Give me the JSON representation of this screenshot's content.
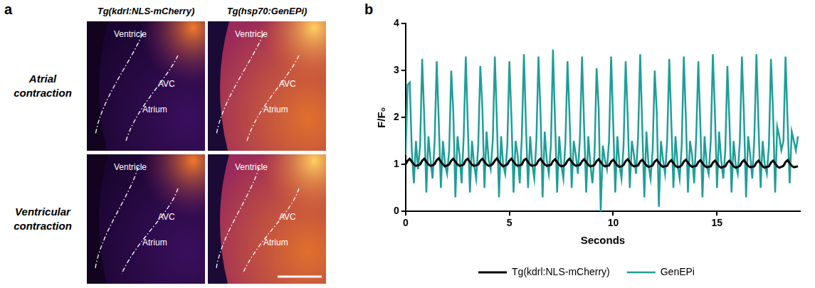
{
  "panel_a": {
    "letter": "a",
    "columns": [
      "Tg(kdrl:NLS-mCherry)",
      "Tg(hsp70:GenEPi)"
    ],
    "rows": [
      "Atrial contraction",
      "Ventricular contraction"
    ],
    "region_labels": [
      "Ventricle",
      "AVC",
      "Atrium"
    ]
  },
  "panel_b_letter": "b",
  "chart_data": {
    "type": "line",
    "x_label": "Seconds",
    "y_label": "F/F₀",
    "xlim": [
      0,
      19
    ],
    "xticks": [
      0,
      5,
      10,
      15
    ],
    "ylim": [
      0,
      4
    ],
    "yticks": [
      0,
      1,
      2,
      3,
      4
    ],
    "grid": false,
    "legend": "bottom",
    "x": [
      0,
      0.1,
      0.2,
      0.3,
      0.4,
      0.5,
      0.6,
      0.7,
      0.8,
      0.9,
      1,
      1.1,
      1.2,
      1.3,
      1.4,
      1.5,
      1.6,
      1.7,
      1.8,
      1.9,
      2,
      2.1,
      2.2,
      2.3,
      2.4,
      2.5,
      2.6,
      2.7,
      2.8,
      2.9,
      3,
      3.1,
      3.2,
      3.3,
      3.4,
      3.5,
      3.6,
      3.7,
      3.8,
      3.9,
      4,
      4.1,
      4.2,
      4.3,
      4.4,
      4.5,
      4.6,
      4.7,
      4.8,
      4.9,
      5,
      5.1,
      5.2,
      5.3,
      5.4,
      5.5,
      5.6,
      5.7,
      5.8,
      5.9,
      6,
      6.1,
      6.2,
      6.3,
      6.4,
      6.5,
      6.6,
      6.7,
      6.8,
      6.9,
      7,
      7.1,
      7.2,
      7.3,
      7.4,
      7.5,
      7.6,
      7.7,
      7.8,
      7.9,
      8,
      8.1,
      8.2,
      8.3,
      8.4,
      8.5,
      8.6,
      8.7,
      8.8,
      8.9,
      9,
      9.1,
      9.2,
      9.3,
      9.4,
      9.5,
      9.6,
      9.7,
      9.8,
      9.9,
      10,
      10.1,
      10.2,
      10.3,
      10.4,
      10.5,
      10.6,
      10.7,
      10.8,
      10.9,
      11,
      11.1,
      11.2,
      11.3,
      11.4,
      11.5,
      11.6,
      11.7,
      11.8,
      11.9,
      12,
      12.1,
      12.2,
      12.3,
      12.4,
      12.5,
      12.6,
      12.7,
      12.8,
      12.9,
      13,
      13.1,
      13.2,
      13.3,
      13.4,
      13.5,
      13.6,
      13.7,
      13.8,
      13.9,
      14,
      14.1,
      14.2,
      14.3,
      14.4,
      14.5,
      14.6,
      14.7,
      14.8,
      14.9,
      15,
      15.1,
      15.2,
      15.3,
      15.4,
      15.5,
      15.6,
      15.7,
      15.8,
      15.9,
      16,
      16.1,
      16.2,
      16.3,
      16.4,
      16.5,
      16.6,
      16.7,
      16.8,
      16.9,
      17,
      17.1,
      17.2,
      17.3,
      17.4,
      17.5,
      17.6,
      17.7,
      17.8,
      17.9,
      18,
      18.1,
      18.2,
      18.3,
      18.4,
      18.5,
      18.6,
      18.7,
      18.8,
      18.9
    ],
    "series": [
      {
        "name": "Tg(kdrl:NLS-mCherry)",
        "color": "#000000",
        "values": [
          1.0,
          1.08,
          1.12,
          1.06,
          1.0,
          0.97,
          0.98,
          1.0,
          1.08,
          1.12,
          1.06,
          1.0,
          0.97,
          0.98,
          1.01,
          1.09,
          1.13,
          1.06,
          1.0,
          0.96,
          0.98,
          1.0,
          1.08,
          1.12,
          1.06,
          1.0,
          0.97,
          0.98,
          1.0,
          1.09,
          1.12,
          1.05,
          0.99,
          0.97,
          0.98,
          1.0,
          1.08,
          1.12,
          1.06,
          1.0,
          0.97,
          0.98,
          1.01,
          1.08,
          1.13,
          1.06,
          1.0,
          0.96,
          0.98,
          1.0,
          1.08,
          1.12,
          1.06,
          1.0,
          0.97,
          0.98,
          1.0,
          1.09,
          1.12,
          1.05,
          0.99,
          0.97,
          0.98,
          1.0,
          1.08,
          1.12,
          1.06,
          1.0,
          0.97,
          0.98,
          0.99,
          1.07,
          1.11,
          1.05,
          0.99,
          0.96,
          0.97,
          1.0,
          1.08,
          1.12,
          1.06,
          1.0,
          0.97,
          0.98,
          0.99,
          1.07,
          1.11,
          1.05,
          0.99,
          0.96,
          0.97,
          0.99,
          1.07,
          1.11,
          1.05,
          0.99,
          0.96,
          0.97,
          0.98,
          1.06,
          1.1,
          1.04,
          0.98,
          0.95,
          0.96,
          0.99,
          1.07,
          1.11,
          1.05,
          0.99,
          0.96,
          0.97,
          0.98,
          1.06,
          1.1,
          1.04,
          0.98,
          0.95,
          0.96,
          0.98,
          1.06,
          1.1,
          1.04,
          0.98,
          0.95,
          0.96,
          0.97,
          1.05,
          1.09,
          1.03,
          0.97,
          0.94,
          0.95,
          0.98,
          1.06,
          1.1,
          1.04,
          0.98,
          0.95,
          0.96,
          0.97,
          1.05,
          1.09,
          1.03,
          0.97,
          0.94,
          0.95,
          0.96,
          1.04,
          1.08,
          1.02,
          0.96,
          0.93,
          0.95,
          0.96,
          1.04,
          1.08,
          1.02,
          0.96,
          0.93,
          0.95,
          0.97,
          1.05,
          1.09,
          1.03,
          0.97,
          0.94,
          0.95,
          0.96,
          1.04,
          1.08,
          1.02,
          0.96,
          0.93,
          0.95,
          0.96,
          1.04,
          1.08,
          1.02,
          0.96,
          0.93,
          0.95,
          0.97,
          1.05,
          1.09,
          1.03,
          0.97,
          0.94,
          0.95,
          0.96
        ]
      },
      {
        "name": "GenEPi",
        "color": "#1f9e98",
        "values": [
          1.2,
          2.7,
          2.75,
          1.3,
          0.6,
          1.5,
          0.9,
          1.4,
          3.25,
          2.0,
          0.4,
          1.6,
          1.1,
          0.7,
          1.5,
          3.2,
          1.9,
          0.5,
          1.5,
          1.0,
          0.8,
          1.3,
          3.0,
          2.1,
          0.3,
          1.6,
          1.2,
          0.6,
          1.6,
          3.3,
          1.8,
          0.4,
          1.5,
          1.0,
          0.7,
          1.4,
          3.1,
          2.2,
          0.5,
          1.7,
          1.1,
          0.9,
          1.5,
          3.3,
          1.9,
          0.3,
          1.6,
          1.0,
          0.8,
          1.4,
          3.2,
          2.0,
          0.4,
          1.5,
          1.2,
          0.6,
          1.6,
          3.35,
          1.8,
          0.5,
          1.6,
          1.0,
          0.7,
          1.5,
          3.3,
          2.1,
          0.3,
          1.7,
          1.1,
          0.8,
          1.4,
          3.45,
          1.9,
          0.4,
          1.6,
          1.0,
          0.7,
          1.5,
          3.2,
          2.0,
          0.5,
          1.5,
          1.2,
          0.8,
          1.6,
          3.3,
          1.8,
          0.4,
          1.6,
          1.0,
          0.6,
          1.2,
          3.05,
          2.2,
          0.0,
          1.4,
          1.1,
          0.9,
          1.5,
          3.3,
          1.9,
          0.4,
          1.6,
          1.0,
          0.7,
          1.4,
          3.2,
          2.0,
          0.5,
          1.5,
          1.2,
          0.8,
          1.6,
          3.35,
          1.8,
          0.3,
          1.7,
          1.0,
          0.7,
          1.3,
          3.0,
          2.1,
          0.1,
          1.5,
          1.1,
          0.8,
          1.5,
          3.25,
          1.9,
          0.5,
          1.6,
          1.0,
          0.7,
          1.4,
          3.3,
          2.0,
          0.4,
          1.5,
          1.2,
          0.6,
          1.6,
          3.2,
          1.8,
          0.3,
          1.6,
          1.0,
          0.8,
          1.5,
          3.35,
          2.1,
          0.5,
          1.7,
          1.1,
          0.7,
          1.3,
          3.1,
          1.9,
          0.4,
          1.5,
          1.0,
          0.8,
          1.5,
          3.3,
          2.0,
          0.3,
          1.6,
          1.2,
          0.7,
          1.6,
          3.35,
          1.8,
          0.5,
          1.5,
          1.0,
          0.8,
          1.4,
          3.25,
          2.1,
          0.4,
          1.8,
          1.6,
          1.3,
          1.5,
          3.3,
          1.9,
          0.6,
          1.7,
          1.5,
          1.3,
          1.6
        ]
      }
    ]
  }
}
